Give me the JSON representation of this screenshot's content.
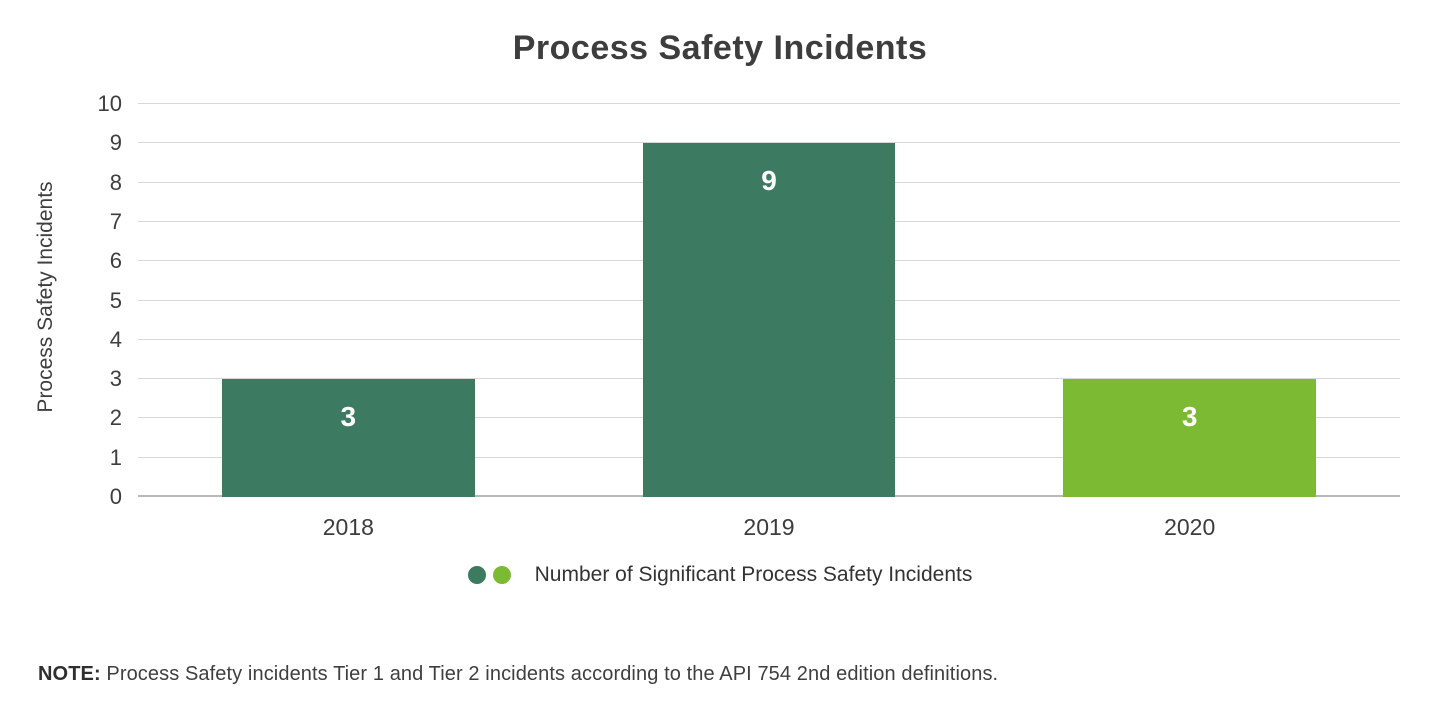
{
  "chart_data": {
    "type": "bar",
    "title": "Process Safety Incidents",
    "categories": [
      "2018",
      "2019",
      "2020"
    ],
    "values": [
      3,
      9,
      3
    ],
    "value_labels": [
      "3",
      "9",
      "3"
    ],
    "bar_colors": [
      "#3C7B61",
      "#3C7B61",
      "#7CBA33"
    ],
    "xlabel": "",
    "ylabel": "Process Safety Incidents",
    "ylim": [
      0,
      10
    ],
    "yticks": [
      0,
      1,
      2,
      3,
      4,
      5,
      6,
      7,
      8,
      9,
      10
    ],
    "grid": "horizontal",
    "legend_position": "bottom-center"
  },
  "legend": {
    "label": "Number of Significant Process Safety Incidents",
    "dot_colors": [
      "#3C7B61",
      "#7CBA33"
    ]
  },
  "note": {
    "label": "NOTE:",
    "text": " Process Safety incidents Tier 1 and Tier 2 incidents according to the API 754 2nd edition definitions."
  },
  "colors": {
    "title_text": "#3d3d3d",
    "axis_text": "#3e3e3e",
    "gridline": "#d8d8d8",
    "baseline": "#b9b9b9",
    "bar_dark_green": "#3C7B61",
    "bar_light_green": "#7CBA33",
    "value_label_text": "#ffffff",
    "background": "#ffffff"
  }
}
